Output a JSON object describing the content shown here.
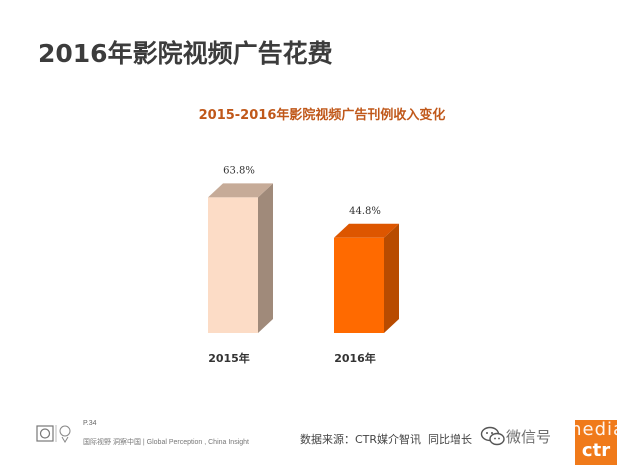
{
  "header": {
    "title": "2016年影院视频广告花费"
  },
  "chart_data": {
    "type": "bar",
    "title": "2015-2016年影院视频广告刊例收入变化",
    "categories": [
      "2015年",
      "2016年"
    ],
    "values": [
      63.8,
      44.8
    ],
    "value_labels": [
      "63.8%",
      "44.8%"
    ],
    "ylim": [
      0,
      80
    ],
    "grid": false,
    "legend": "none",
    "style": "3d",
    "colors": {
      "2015年": {
        "front": "#fcdcc6",
        "side": "#a08a7a",
        "top": "#c6ab98"
      },
      "2016年": {
        "front": "#ff6a00",
        "side": "#b84b00",
        "top": "#dd5600"
      }
    }
  },
  "footer": {
    "page_number": "P.34",
    "tagline": "国际视野 洞察中国 | Global Perception , China Insight",
    "source": "数据来源：CTR媒介智讯",
    "growth": "同比增长",
    "watermark": "微信号",
    "brand": "mediam"
  },
  "icons": {
    "footer_logo": "certification-badge-icon",
    "watermark_icon": "wechat-icon",
    "brand_mark": "ctr-logo-icon"
  },
  "colors": {
    "title": "#3c3c3c",
    "chart_title": "#c0581a",
    "accent": "#f07a1a"
  }
}
